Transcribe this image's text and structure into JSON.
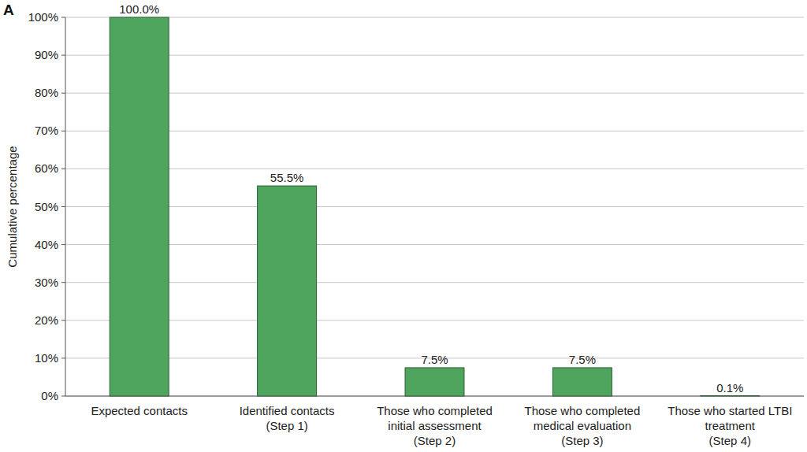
{
  "chart_data": {
    "type": "bar",
    "title": "A",
    "y_label": "Cumulative percentage",
    "categories": [
      "Expected contacts",
      "Identified contacts\n(Step 1)",
      "Those who completed\ninitial assessment\n(Step 2)",
      "Those who completed\nmedical evaluation\n(Step 3)",
      "Those who started LTBI\ntreatment\n(Step 4)"
    ],
    "values": [
      100,
      55.5,
      7.5,
      7.5,
      0.1
    ],
    "value_labels": [
      "100.0%",
      "55.5%",
      "7.5%",
      "7.5%",
      "0.1%"
    ],
    "color": "#4fa55e",
    "ylim": [
      0,
      100
    ],
    "yticks": [
      {
        "value": 0,
        "label": "0%"
      },
      {
        "value": 10,
        "label": "10%"
      },
      {
        "value": 20,
        "label": "20%"
      },
      {
        "value": 30,
        "label": "30%"
      },
      {
        "value": 40,
        "label": "40%"
      },
      {
        "value": 50,
        "label": "50%"
      },
      {
        "value": 60,
        "label": "60%"
      },
      {
        "value": 70,
        "label": "70%"
      },
      {
        "value": 80,
        "label": "80%"
      },
      {
        "value": 90,
        "label": "90%"
      },
      {
        "value": 100,
        "label": "100%"
      }
    ],
    "grid": true,
    "data_labels": true
  }
}
